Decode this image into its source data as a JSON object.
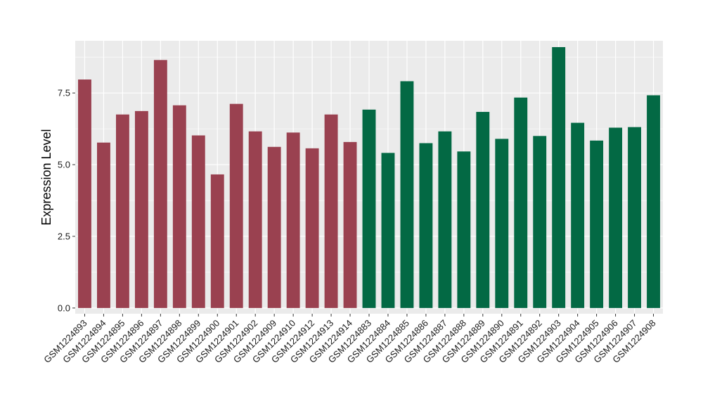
{
  "chart_data": {
    "type": "bar",
    "title": "",
    "xlabel": "",
    "ylabel": "Expression Level",
    "ylim": [
      -0.2,
      9.32
    ],
    "yticks": [
      0.0,
      2.5,
      5.0,
      7.5
    ],
    "ytick_labels": [
      "0.0",
      "2.5",
      "5.0",
      "7.5"
    ],
    "grid": true,
    "panel_background": "#ebebeb",
    "grid_color": "#ffffff",
    "categories": [
      "GSM1224893",
      "GSM1224894",
      "GSM1224895",
      "GSM1224896",
      "GSM1224897",
      "GSM1224898",
      "GSM1224899",
      "GSM1224900",
      "GSM1224901",
      "GSM1224902",
      "GSM1224909",
      "GSM1224910",
      "GSM1224912",
      "GSM1224913",
      "GSM1224914",
      "GSM1224883",
      "GSM1224884",
      "GSM1224885",
      "GSM1224886",
      "GSM1224887",
      "GSM1224888",
      "GSM1224889",
      "GSM1224890",
      "GSM1224891",
      "GSM1224892",
      "GSM1224903",
      "GSM1224904",
      "GSM1224905",
      "GSM1224906",
      "GSM1224907",
      "GSM1224908"
    ],
    "values": [
      7.97,
      5.77,
      6.75,
      6.87,
      8.65,
      7.07,
      6.02,
      4.66,
      7.12,
      6.16,
      5.62,
      6.12,
      5.57,
      6.75,
      5.79,
      6.92,
      5.41,
      7.91,
      5.75,
      6.16,
      5.46,
      6.84,
      5.9,
      7.34,
      6.0,
      9.1,
      6.46,
      5.84,
      6.29,
      6.31,
      7.42
    ],
    "groups": [
      0,
      0,
      0,
      0,
      0,
      0,
      0,
      0,
      0,
      0,
      0,
      0,
      0,
      0,
      0,
      1,
      1,
      1,
      1,
      1,
      1,
      1,
      1,
      1,
      1,
      1,
      1,
      1,
      1,
      1,
      1
    ],
    "group_colors": [
      "#9a4150",
      "#036944"
    ]
  }
}
